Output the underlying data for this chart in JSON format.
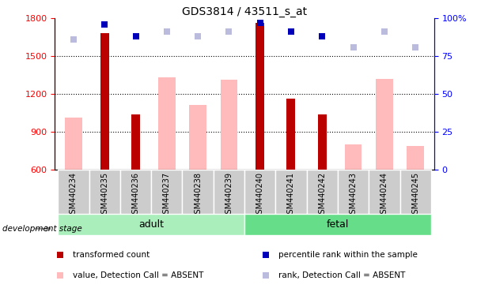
{
  "title": "GDS3814 / 43511_s_at",
  "samples": [
    "GSM440234",
    "GSM440235",
    "GSM440236",
    "GSM440237",
    "GSM440238",
    "GSM440239",
    "GSM440240",
    "GSM440241",
    "GSM440242",
    "GSM440243",
    "GSM440244",
    "GSM440245"
  ],
  "red_bar_values": [
    null,
    1680,
    1040,
    null,
    null,
    null,
    1760,
    1165,
    1035,
    null,
    null,
    null
  ],
  "pink_bar_values": [
    1010,
    null,
    null,
    1330,
    1115,
    1310,
    null,
    null,
    null,
    800,
    1320,
    790
  ],
  "blue_marker_values": [
    null,
    96,
    88,
    null,
    null,
    null,
    97,
    91,
    88,
    null,
    null,
    null
  ],
  "lightblue_marker_values": [
    86,
    null,
    null,
    91,
    88,
    91,
    null,
    null,
    null,
    81,
    91,
    81
  ],
  "ylim_left": [
    600,
    1800
  ],
  "ylim_right": [
    0,
    100
  ],
  "yticks_left": [
    600,
    900,
    1200,
    1500,
    1800
  ],
  "yticks_right": [
    0,
    25,
    50,
    75,
    100
  ],
  "yticklabels_right": [
    "0",
    "25",
    "50",
    "75",
    "100%"
  ],
  "red_color": "#bb0000",
  "pink_color": "#ffbbbb",
  "blue_color": "#0000bb",
  "lightblue_color": "#bbbbdd",
  "adult_bg": "#aaeebb",
  "fetal_bg": "#66dd88",
  "legend_items": [
    {
      "label": "transformed count",
      "color": "#bb0000",
      "marker": "s"
    },
    {
      "label": "percentile rank within the sample",
      "color": "#0000bb",
      "marker": "s"
    },
    {
      "label": "value, Detection Call = ABSENT",
      "color": "#ffbbbb",
      "marker": "s"
    },
    {
      "label": "rank, Detection Call = ABSENT",
      "color": "#bbbbdd",
      "marker": "s"
    }
  ]
}
